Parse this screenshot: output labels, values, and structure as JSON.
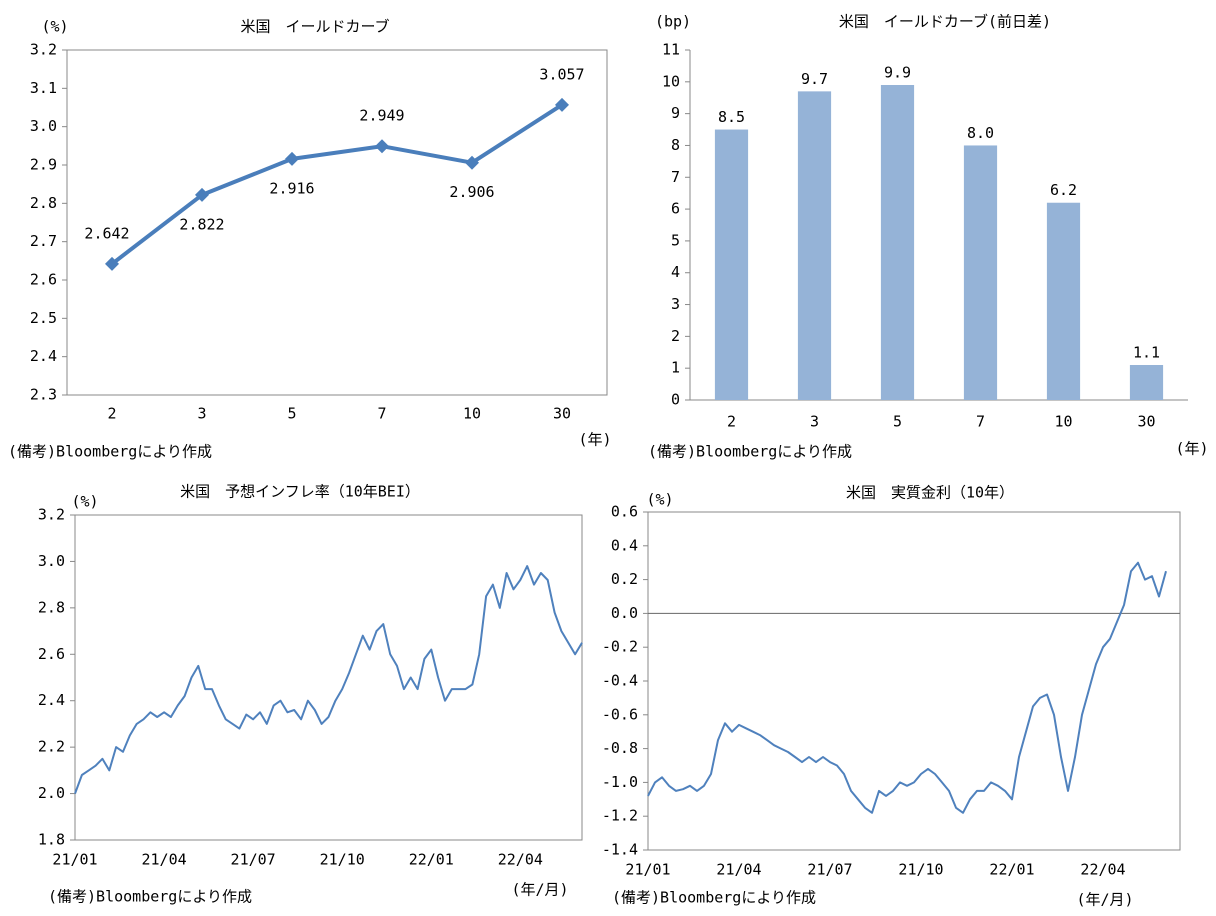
{
  "chart_data": [
    {
      "type": "line",
      "title": "米国　イールドカーブ",
      "y_label": "(%)",
      "x_label": "(年)",
      "note": "(備考)Bloombergにより作成",
      "categories": [
        "2",
        "3",
        "5",
        "7",
        "10",
        "30"
      ],
      "values": [
        2.642,
        2.822,
        2.916,
        2.949,
        2.906,
        3.057
      ],
      "color": "#4a7ebb",
      "markers": true,
      "data_labels": true,
      "ylim": [
        2.3,
        3.2
      ],
      "yticks": [
        2.3,
        2.4,
        2.5,
        2.6,
        2.7,
        2.8,
        2.9,
        {
          "value": 3,
          "label": "3.0"
        },
        3.1,
        3.2
      ],
      "grid": false
    },
    {
      "type": "bar",
      "title": "米国　イールドカーブ(前日差)",
      "y_label": "(bp)",
      "x_label": "(年)",
      "note": "(備考)Bloombergにより作成",
      "categories": [
        "2",
        "3",
        "5",
        "7",
        "10",
        "30"
      ],
      "values": [
        8.5,
        9.7,
        9.9,
        8.0,
        6.2,
        1.1
      ],
      "value_labels": [
        "8.5",
        "9.7",
        "9.9",
        "8.0",
        "6.2",
        "1.1"
      ],
      "color": "#95b3d7",
      "ylim": [
        0,
        11
      ],
      "yticks": [
        0,
        1,
        2,
        3,
        4,
        5,
        6,
        7,
        8,
        9,
        10,
        11
      ],
      "grid": false
    },
    {
      "type": "line",
      "title": "米国　予想インフレ率（10年BEI）",
      "y_label": "(%)",
      "x_label": "(年/月)",
      "note": "(備考)Bloombergにより作成",
      "categories": [
        "21/01",
        null,
        null,
        null,
        null,
        null,
        null,
        null,
        null,
        null,
        null,
        null,
        null,
        "21/04",
        null,
        null,
        null,
        null,
        null,
        null,
        null,
        null,
        null,
        null,
        null,
        null,
        "21/07",
        null,
        null,
        null,
        null,
        null,
        null,
        null,
        null,
        null,
        null,
        null,
        null,
        "21/10",
        null,
        null,
        null,
        null,
        null,
        null,
        null,
        null,
        null,
        null,
        null,
        null,
        "22/01",
        null,
        null,
        null,
        null,
        null,
        null,
        null,
        null,
        null,
        null,
        null,
        null,
        "22/04",
        null,
        null,
        null,
        null,
        null,
        null,
        null,
        null,
        null
      ],
      "values": [
        2.0,
        2.08,
        2.1,
        2.12,
        2.15,
        2.1,
        2.2,
        2.18,
        2.25,
        2.3,
        2.32,
        2.35,
        2.33,
        2.35,
        2.33,
        2.38,
        2.42,
        2.5,
        2.55,
        2.45,
        2.45,
        2.38,
        2.32,
        2.3,
        2.28,
        2.34,
        2.32,
        2.35,
        2.3,
        2.38,
        2.4,
        2.35,
        2.36,
        2.32,
        2.4,
        2.36,
        2.3,
        2.33,
        2.4,
        2.45,
        2.52,
        2.6,
        2.68,
        2.62,
        2.7,
        2.73,
        2.6,
        2.55,
        2.45,
        2.5,
        2.45,
        2.58,
        2.62,
        2.5,
        2.4,
        2.45,
        2.45,
        2.45,
        2.47,
        2.6,
        2.85,
        2.9,
        2.8,
        2.95,
        2.88,
        2.92,
        2.98,
        2.9,
        2.95,
        2.92,
        2.78,
        2.7,
        2.65,
        2.6,
        2.65
      ],
      "color": "#4f81bd",
      "markers": false,
      "ylim": [
        1.8,
        3.2
      ],
      "yticks": [
        1.8,
        {
          "value": 2,
          "label": "2.0"
        },
        2.2,
        2.4,
        2.6,
        2.8,
        {
          "value": 3,
          "label": "3.0"
        },
        3.2
      ],
      "grid": false
    },
    {
      "type": "line",
      "title": "米国　実質金利（10年）",
      "y_label": "(%)",
      "x_label": "(年/月)",
      "note": "(備考)Bloombergにより作成",
      "categories": [
        "21/01",
        null,
        null,
        null,
        null,
        null,
        null,
        null,
        null,
        null,
        null,
        null,
        null,
        "21/04",
        null,
        null,
        null,
        null,
        null,
        null,
        null,
        null,
        null,
        null,
        null,
        null,
        "21/07",
        null,
        null,
        null,
        null,
        null,
        null,
        null,
        null,
        null,
        null,
        null,
        null,
        "21/10",
        null,
        null,
        null,
        null,
        null,
        null,
        null,
        null,
        null,
        null,
        null,
        null,
        "22/01",
        null,
        null,
        null,
        null,
        null,
        null,
        null,
        null,
        null,
        null,
        null,
        null,
        "22/04",
        null,
        null,
        null,
        null,
        null,
        null,
        null,
        null,
        null
      ],
      "values": [
        -1.08,
        -1.0,
        -0.97,
        -1.02,
        -1.05,
        -1.04,
        -1.02,
        -1.05,
        -1.02,
        -0.95,
        -0.75,
        -0.65,
        -0.7,
        -0.66,
        -0.68,
        -0.7,
        -0.72,
        -0.75,
        -0.78,
        -0.8,
        -0.82,
        -0.85,
        -0.88,
        -0.85,
        -0.88,
        -0.85,
        -0.88,
        -0.9,
        -0.95,
        -1.05,
        -1.1,
        -1.15,
        -1.18,
        -1.05,
        -1.08,
        -1.05,
        -1.0,
        -1.02,
        -1.0,
        -0.95,
        -0.92,
        -0.95,
        -1.0,
        -1.05,
        -1.15,
        -1.18,
        -1.1,
        -1.05,
        -1.05,
        -1.0,
        -1.02,
        -1.05,
        -1.1,
        -0.85,
        -0.7,
        -0.55,
        -0.5,
        -0.48,
        -0.6,
        -0.85,
        -1.05,
        -0.85,
        -0.6,
        -0.45,
        -0.3,
        -0.2,
        -0.15,
        -0.05,
        0.05,
        0.25,
        0.3,
        0.2,
        0.22,
        0.1,
        0.25
      ],
      "color": "#4f81bd",
      "markers": false,
      "zero_line": true,
      "ylim": [
        -1.4,
        0.6
      ],
      "yticks": [
        -1.4,
        -1.2,
        {
          "value": -1,
          "label": "-1.0"
        },
        -0.8,
        -0.6,
        -0.4,
        -0.2,
        {
          "value": 0,
          "label": "0.0"
        },
        0.2,
        0.4,
        0.6
      ],
      "grid": false
    }
  ]
}
